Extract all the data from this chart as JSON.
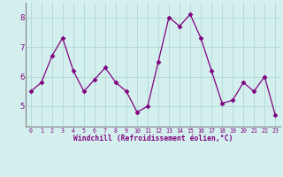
{
  "x": [
    0,
    1,
    2,
    3,
    4,
    5,
    6,
    7,
    8,
    9,
    10,
    11,
    12,
    13,
    14,
    15,
    16,
    17,
    18,
    19,
    20,
    21,
    22,
    23
  ],
  "y": [
    5.5,
    5.8,
    6.7,
    7.3,
    6.2,
    5.5,
    5.9,
    6.3,
    5.8,
    5.5,
    4.8,
    5.0,
    6.5,
    8.0,
    7.7,
    8.1,
    7.3,
    6.2,
    5.1,
    5.2,
    5.8,
    5.5,
    6.0,
    4.7
  ],
  "xlim": [
    -0.5,
    23.5
  ],
  "ylim": [
    4.3,
    8.5
  ],
  "yticks": [
    5,
    6,
    7,
    8
  ],
  "xtick_labels": [
    "0",
    "1",
    "2",
    "3",
    "4",
    "5",
    "6",
    "7",
    "8",
    "9",
    "10",
    "11",
    "12",
    "13",
    "14",
    "15",
    "16",
    "17",
    "18",
    "19",
    "20",
    "21",
    "22",
    "23"
  ],
  "xlabel": "Windchill (Refroidissement éolien,°C)",
  "line_color": "#800080",
  "marker": "D",
  "marker_size": 2.5,
  "bg_color": "#d4f0ee",
  "grid_color": "#b0d8d4",
  "axis_color": "#808080"
}
